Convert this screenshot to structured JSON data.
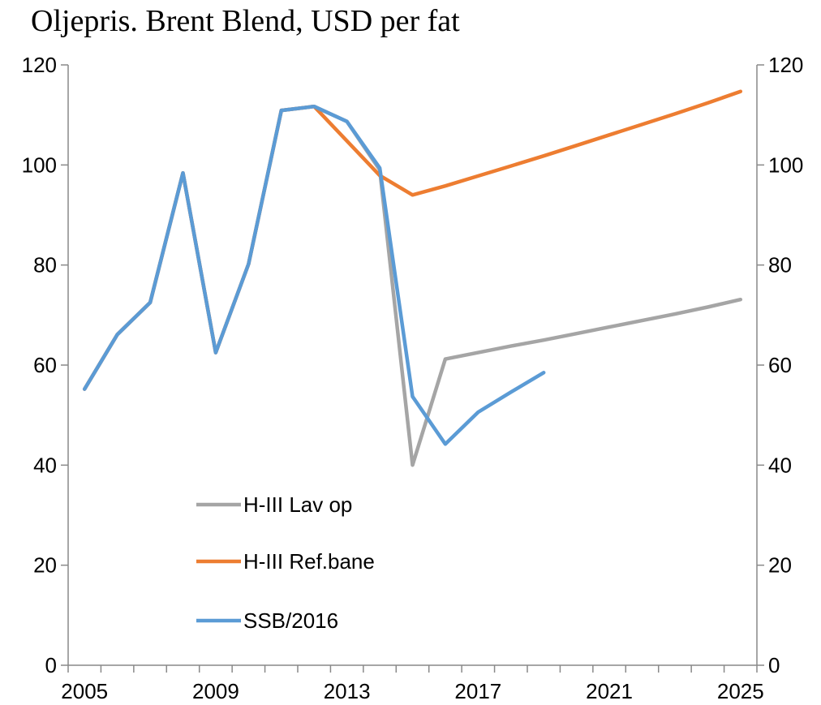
{
  "chart_data": {
    "type": "line",
    "title": "Oljepris. Brent Blend, USD per fat",
    "xlabel": "",
    "ylabel": "",
    "xlim": [
      2005,
      2025
    ],
    "ylim": [
      0,
      120
    ],
    "x_ticks": [
      2005,
      2009,
      2013,
      2017,
      2021,
      2025
    ],
    "y_ticks": [
      0,
      20,
      40,
      60,
      80,
      100,
      120
    ],
    "grid": false,
    "legend_position": "left-bottom",
    "series": [
      {
        "name": "H-III Lav op",
        "color": "#a5a5a5",
        "points": [
          [
            2005,
            55.2
          ],
          [
            2006,
            66.1
          ],
          [
            2007,
            72.5
          ],
          [
            2008,
            98.4
          ],
          [
            2009,
            62.5
          ],
          [
            2010,
            80.2
          ],
          [
            2011,
            110.9
          ],
          [
            2012,
            111.7
          ],
          [
            2013,
            108.7
          ],
          [
            2014,
            99.0
          ],
          [
            2015,
            40.0
          ],
          [
            2016,
            61.2
          ],
          [
            2017,
            62.5
          ],
          [
            2018,
            63.8
          ],
          [
            2019,
            65.0
          ],
          [
            2020,
            66.3
          ],
          [
            2021,
            67.6
          ],
          [
            2022,
            68.9
          ],
          [
            2023,
            70.2
          ],
          [
            2024,
            71.6
          ],
          [
            2025,
            73.1
          ]
        ]
      },
      {
        "name": "H-III Ref.bane",
        "color": "#ed7d31",
        "points": [
          [
            2005,
            55.2
          ],
          [
            2006,
            66.1
          ],
          [
            2007,
            72.5
          ],
          [
            2008,
            98.4
          ],
          [
            2009,
            62.5
          ],
          [
            2010,
            80.2
          ],
          [
            2011,
            110.9
          ],
          [
            2012,
            111.7
          ],
          [
            2013,
            104.8
          ],
          [
            2014,
            97.9
          ],
          [
            2015,
            94.0
          ],
          [
            2016,
            95.8
          ],
          [
            2017,
            97.8
          ],
          [
            2018,
            99.8
          ],
          [
            2019,
            101.8
          ],
          [
            2020,
            103.9
          ],
          [
            2021,
            106.0
          ],
          [
            2022,
            108.1
          ],
          [
            2023,
            110.2
          ],
          [
            2024,
            112.4
          ],
          [
            2025,
            114.7
          ]
        ]
      },
      {
        "name": "SSB/2016",
        "color": "#5b9bd5",
        "points": [
          [
            2005,
            55.2
          ],
          [
            2006,
            66.1
          ],
          [
            2007,
            72.5
          ],
          [
            2008,
            98.4
          ],
          [
            2009,
            62.5
          ],
          [
            2010,
            80.2
          ],
          [
            2011,
            110.9
          ],
          [
            2012,
            111.7
          ],
          [
            2013,
            108.7
          ],
          [
            2014,
            99.4
          ],
          [
            2015,
            53.7
          ],
          [
            2016,
            44.2
          ],
          [
            2017,
            50.6
          ],
          [
            2018,
            54.6
          ],
          [
            2019,
            58.5
          ]
        ]
      }
    ]
  }
}
